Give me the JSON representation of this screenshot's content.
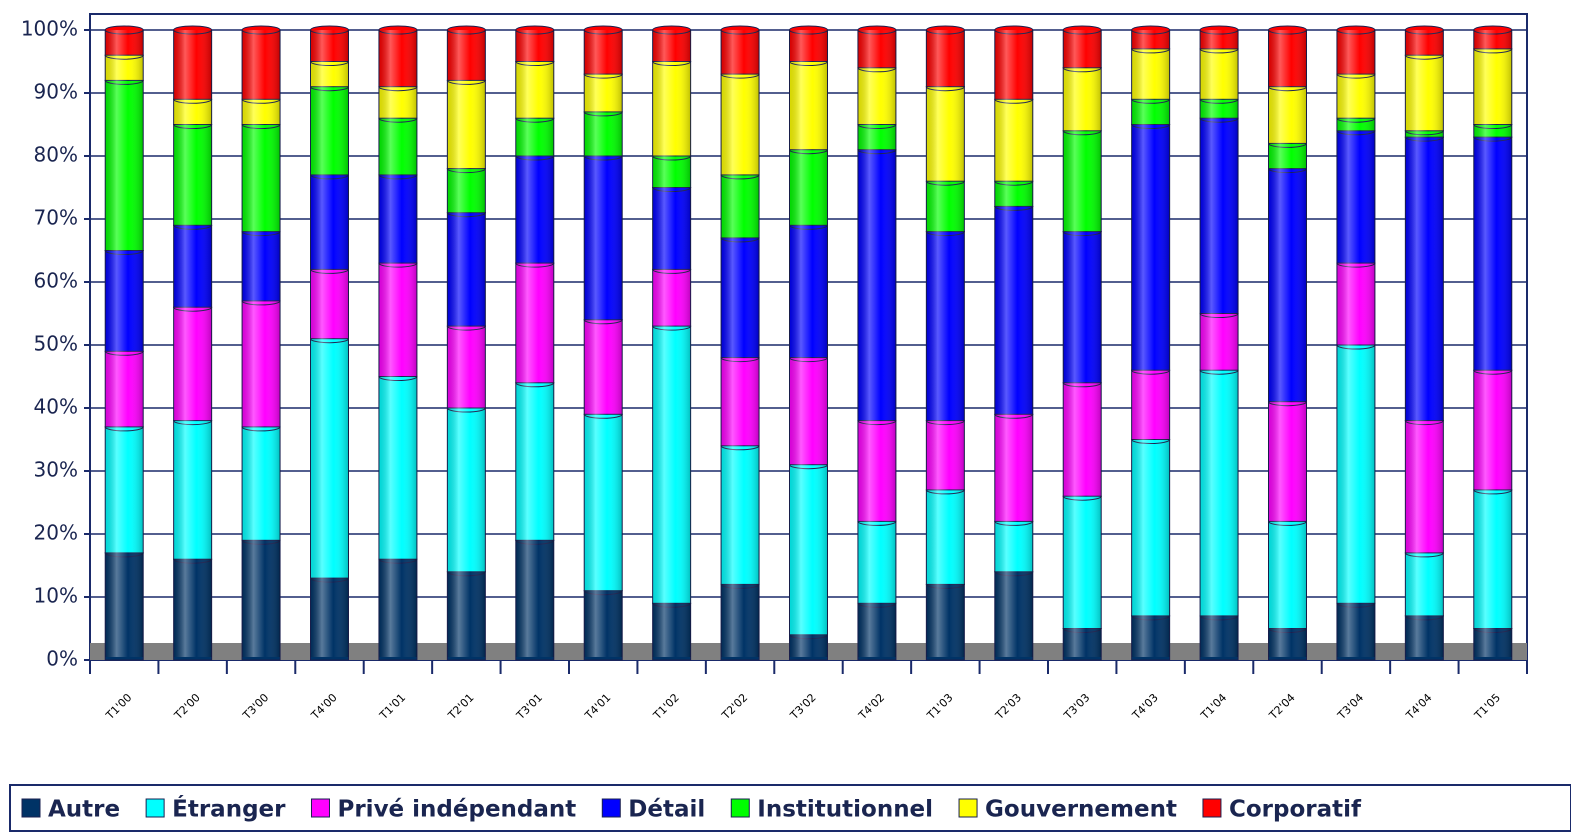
{
  "chart_data": {
    "type": "stacked-bar",
    "categories": [
      "T1'00",
      "T2'00",
      "T3'00",
      "T4'00",
      "T1'01",
      "T2'01",
      "T3'01",
      "T4'01",
      "T1'02",
      "T2'02",
      "T3'02",
      "T4'02",
      "T1'03",
      "T2'03",
      "T3'03",
      "T4'03",
      "T1'04",
      "T2'04",
      "T3'04",
      "T4'04",
      "T1'05"
    ],
    "series": [
      {
        "name": "Autre",
        "color": "#003366",
        "values": [
          17,
          16,
          19,
          13,
          16,
          14,
          19,
          11,
          9,
          12,
          4,
          9,
          12,
          14,
          5,
          7,
          7,
          5,
          9,
          7,
          5
        ]
      },
      {
        "name": "Étranger",
        "color": "#00ffff",
        "values": [
          20,
          22,
          18,
          38,
          29,
          26,
          25,
          28,
          44,
          22,
          27,
          13,
          15,
          8,
          21,
          28,
          39,
          17,
          41,
          10,
          22
        ]
      },
      {
        "name": "Privé indépendant",
        "color": "#ff00ff",
        "values": [
          12,
          18,
          20,
          11,
          18,
          13,
          19,
          15,
          9,
          14,
          17,
          16,
          11,
          17,
          18,
          11,
          9,
          19,
          13,
          21,
          19
        ]
      },
      {
        "name": "Détail",
        "color": "#0000ff",
        "values": [
          16,
          13,
          11,
          15,
          14,
          18,
          17,
          26,
          13,
          19,
          21,
          43,
          30,
          33,
          24,
          39,
          31,
          37,
          21,
          45,
          37
        ]
      },
      {
        "name": "Institutionnel",
        "color": "#00ff00",
        "values": [
          27,
          16,
          17,
          14,
          9,
          7,
          6,
          7,
          5,
          10,
          12,
          4,
          8,
          4,
          16,
          4,
          3,
          4,
          2,
          1,
          2
        ]
      },
      {
        "name": "Gouvernement",
        "color": "#ffff00",
        "values": [
          4,
          4,
          4,
          4,
          5,
          14,
          9,
          6,
          15,
          16,
          14,
          9,
          15,
          13,
          10,
          8,
          8,
          9,
          7,
          12,
          12
        ]
      },
      {
        "name": "Corporatif",
        "color": "#ff0000",
        "values": [
          4,
          11,
          11,
          5,
          9,
          8,
          5,
          7,
          5,
          7,
          5,
          6,
          9,
          11,
          6,
          3,
          3,
          9,
          7,
          4,
          3
        ]
      }
    ],
    "ylim": [
      0,
      100
    ],
    "yticks": [
      {
        "value": 0,
        "label": "0%"
      },
      {
        "value": 10,
        "label": "10%"
      },
      {
        "value": 20,
        "label": "20%"
      },
      {
        "value": 30,
        "label": "30%"
      },
      {
        "value": 40,
        "label": "40%"
      },
      {
        "value": 50,
        "label": "50%"
      },
      {
        "value": 60,
        "label": "60%"
      },
      {
        "value": 70,
        "label": "70%"
      },
      {
        "value": 80,
        "label": "80%"
      },
      {
        "value": 90,
        "label": "90%"
      },
      {
        "value": 100,
        "label": "100%"
      }
    ],
    "grid": true,
    "legend": "bottom"
  }
}
